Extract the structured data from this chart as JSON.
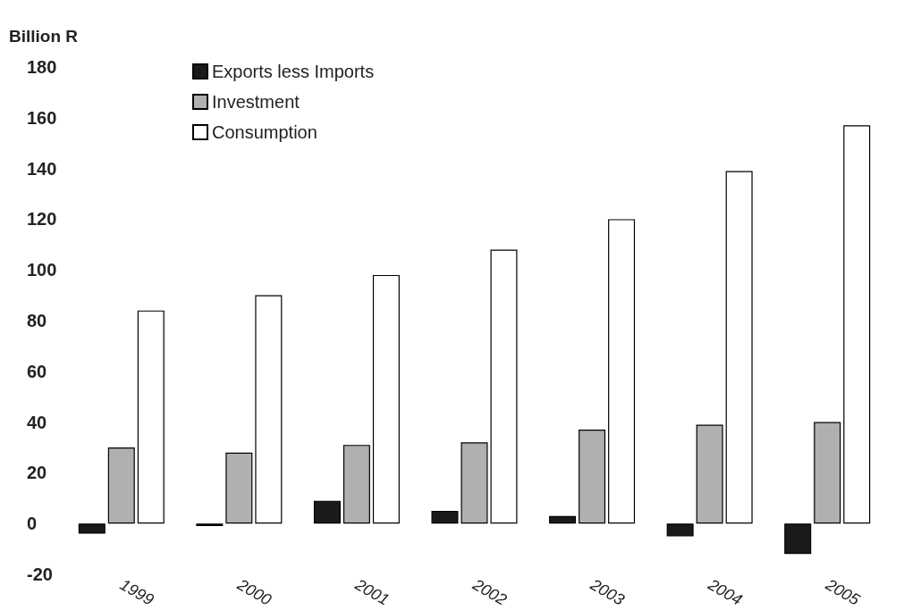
{
  "chart_data": {
    "type": "bar",
    "ylabel": "Billion R",
    "categories": [
      "1999",
      "2000",
      "2001",
      "2002",
      "2003",
      "2004",
      "2005"
    ],
    "series": [
      {
        "name": "Exports less Imports",
        "color": "#1a1a1a",
        "values": [
          -4,
          -1,
          9,
          5,
          3,
          -5,
          -12
        ]
      },
      {
        "name": "Investment",
        "color": "#b0b0b0",
        "values": [
          30,
          28,
          31,
          32,
          37,
          39,
          40
        ]
      },
      {
        "name": "Consumption",
        "color": "#ffffff",
        "values": [
          84,
          90,
          98,
          108,
          120,
          139,
          157
        ]
      }
    ],
    "ylim": [
      -20,
      180
    ],
    "yticks": [
      -20,
      0,
      20,
      40,
      60,
      80,
      100,
      120,
      140,
      160,
      180
    ],
    "grid": false,
    "legend": "top left"
  }
}
